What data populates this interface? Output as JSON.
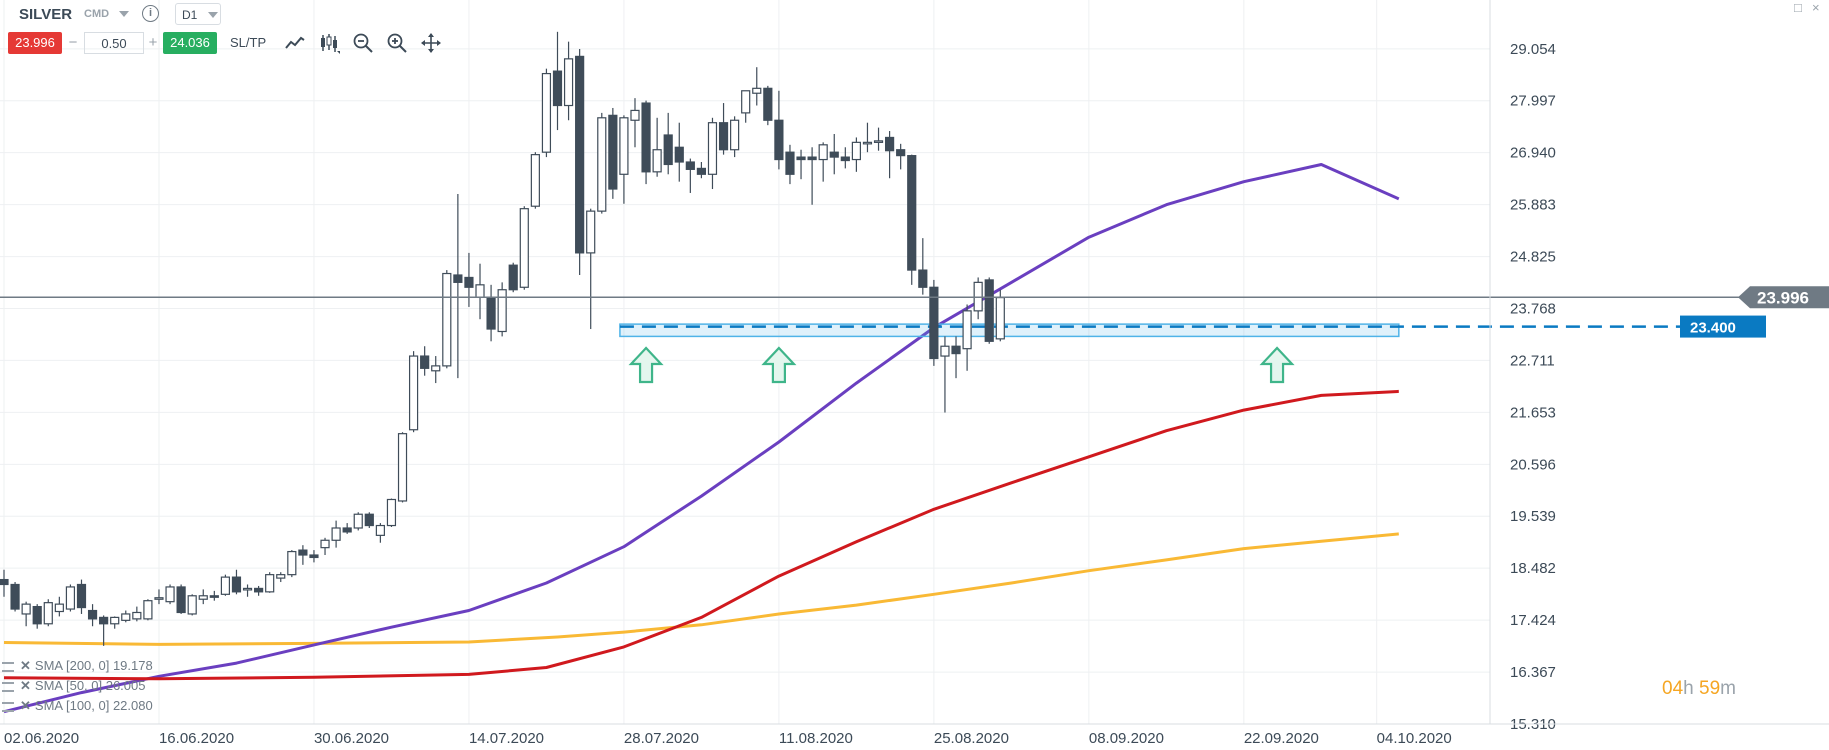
{
  "toolbar": {
    "symbol": "SILVER",
    "market": "CMD",
    "info_icon": "info-icon",
    "timeframe": "D1",
    "sell_price": "23.996",
    "buy_price": "24.036",
    "volume": "0.50",
    "minus_label": "−",
    "plus_label": "+",
    "sltp_label": "SL/TP",
    "tools": [
      "line-chart-icon",
      "candlestick-chart-icon",
      "zoom-out-icon",
      "zoom-in-icon",
      "move-icon"
    ]
  },
  "window_buttons": {
    "minimize": "□",
    "close": "×"
  },
  "legend": [
    {
      "label": "SMA [200, 0] 19.178"
    },
    {
      "label": "SMA [50, 0] 26.005"
    },
    {
      "label": "SMA [100, 0] 22.080"
    }
  ],
  "timer": {
    "hours": "04",
    "h_unit": "h",
    "minutes": "59",
    "m_unit": "m"
  },
  "colors": {
    "bull_body": "#ffffff",
    "bear_body": "#3f4c59",
    "candle_outline": "#3f4c59",
    "sma50": "#6a3fc0",
    "sma100": "#d0191e",
    "sma200": "#f9b935",
    "support_zone": "#4fb3e8",
    "arrow": "#3fb58a",
    "price_tag": "#6f7a84",
    "level_tag": "#0a7ac2"
  },
  "chart_data": {
    "type": "candlestick",
    "title": "SILVER",
    "timeframe": "D1",
    "y_ticks": [
      29.054,
      27.997,
      26.94,
      25.883,
      24.825,
      23.768,
      22.711,
      21.653,
      20.596,
      19.539,
      18.482,
      17.424,
      16.367,
      15.31
    ],
    "y_tick_labels": [
      "29.054",
      "27.997",
      "26.940",
      "25.883",
      "24.825",
      "23.768",
      "22.711",
      "21.653",
      "20.596",
      "19.539",
      "18.482",
      "17.424",
      "16.367",
      "15.310"
    ],
    "x_ticks": [
      {
        "label": "02.06.2020",
        "day": 0
      },
      {
        "label": "16.06.2020",
        "day": 14
      },
      {
        "label": "30.06.2020",
        "day": 28
      },
      {
        "label": "14.07.2020",
        "day": 42
      },
      {
        "label": "28.07.2020",
        "day": 56
      },
      {
        "label": "11.08.2020",
        "day": 70
      },
      {
        "label": "25.08.2020",
        "day": 84
      },
      {
        "label": "08.09.2020",
        "day": 98
      },
      {
        "label": "22.09.2020",
        "day": 112
      },
      {
        "label": "04.10.2020",
        "day": 124
      }
    ],
    "candles": [
      {
        "o": 18.25,
        "h": 18.45,
        "l": 17.9,
        "c": 18.15
      },
      {
        "o": 18.15,
        "h": 18.2,
        "l": 17.6,
        "c": 17.65
      },
      {
        "o": 17.55,
        "h": 17.8,
        "l": 17.3,
        "c": 17.75
      },
      {
        "o": 17.7,
        "h": 17.75,
        "l": 17.25,
        "c": 17.35
      },
      {
        "o": 17.35,
        "h": 17.85,
        "l": 17.3,
        "c": 17.78
      },
      {
        "o": 17.6,
        "h": 17.9,
        "l": 17.5,
        "c": 17.75
      },
      {
        "o": 17.65,
        "h": 18.15,
        "l": 17.6,
        "c": 18.1
      },
      {
        "o": 18.15,
        "h": 18.25,
        "l": 17.55,
        "c": 17.68
      },
      {
        "o": 17.62,
        "h": 17.75,
        "l": 17.3,
        "c": 17.45
      },
      {
        "o": 17.48,
        "h": 17.52,
        "l": 16.9,
        "c": 17.35
      },
      {
        "o": 17.35,
        "h": 17.5,
        "l": 17.25,
        "c": 17.48
      },
      {
        "o": 17.42,
        "h": 17.62,
        "l": 17.38,
        "c": 17.55
      },
      {
        "o": 17.45,
        "h": 17.7,
        "l": 17.4,
        "c": 17.58
      },
      {
        "o": 17.45,
        "h": 17.85,
        "l": 17.42,
        "c": 17.82
      },
      {
        "o": 17.85,
        "h": 18.05,
        "l": 17.75,
        "c": 17.88
      },
      {
        "o": 17.8,
        "h": 18.15,
        "l": 17.75,
        "c": 18.1
      },
      {
        "o": 18.1,
        "h": 18.15,
        "l": 17.55,
        "c": 17.58
      },
      {
        "o": 17.55,
        "h": 17.95,
        "l": 17.52,
        "c": 17.92
      },
      {
        "o": 17.85,
        "h": 18.05,
        "l": 17.75,
        "c": 17.92
      },
      {
        "o": 17.92,
        "h": 18.02,
        "l": 17.82,
        "c": 17.9
      },
      {
        "o": 17.95,
        "h": 18.35,
        "l": 17.92,
        "c": 18.3
      },
      {
        "o": 18.3,
        "h": 18.45,
        "l": 17.95,
        "c": 18.0
      },
      {
        "o": 18.05,
        "h": 18.15,
        "l": 17.9,
        "c": 18.07
      },
      {
        "o": 18.07,
        "h": 18.12,
        "l": 17.92,
        "c": 18.0
      },
      {
        "o": 18.0,
        "h": 18.4,
        "l": 17.98,
        "c": 18.35
      },
      {
        "o": 18.28,
        "h": 18.4,
        "l": 18.2,
        "c": 18.35
      },
      {
        "o": 18.35,
        "h": 18.85,
        "l": 18.3,
        "c": 18.82
      },
      {
        "o": 18.85,
        "h": 18.95,
        "l": 18.55,
        "c": 18.75
      },
      {
        "o": 18.75,
        "h": 18.85,
        "l": 18.6,
        "c": 18.7
      },
      {
        "o": 18.9,
        "h": 19.1,
        "l": 18.75,
        "c": 19.05
      },
      {
        "o": 19.05,
        "h": 19.45,
        "l": 18.9,
        "c": 19.3
      },
      {
        "o": 19.3,
        "h": 19.4,
        "l": 19.18,
        "c": 19.22
      },
      {
        "o": 19.3,
        "h": 19.62,
        "l": 19.25,
        "c": 19.58
      },
      {
        "o": 19.58,
        "h": 19.62,
        "l": 19.3,
        "c": 19.35
      },
      {
        "o": 19.15,
        "h": 19.4,
        "l": 19.0,
        "c": 19.35
      },
      {
        "o": 19.35,
        "h": 19.9,
        "l": 19.32,
        "c": 19.88
      },
      {
        "o": 19.85,
        "h": 21.25,
        "l": 19.82,
        "c": 21.22
      },
      {
        "o": 21.3,
        "h": 22.9,
        "l": 21.25,
        "c": 22.8
      },
      {
        "o": 22.8,
        "h": 23.0,
        "l": 22.4,
        "c": 22.55
      },
      {
        "o": 22.5,
        "h": 22.8,
        "l": 22.25,
        "c": 22.6
      },
      {
        "o": 22.6,
        "h": 24.55,
        "l": 22.55,
        "c": 24.48
      },
      {
        "o": 24.45,
        "h": 26.1,
        "l": 22.35,
        "c": 24.3
      },
      {
        "o": 24.4,
        "h": 24.9,
        "l": 23.8,
        "c": 24.2
      },
      {
        "o": 24.0,
        "h": 24.68,
        "l": 23.55,
        "c": 24.25
      },
      {
        "o": 23.98,
        "h": 24.25,
        "l": 23.1,
        "c": 23.35
      },
      {
        "o": 23.3,
        "h": 24.3,
        "l": 23.2,
        "c": 24.15
      },
      {
        "o": 24.65,
        "h": 24.7,
        "l": 24.1,
        "c": 24.15
      },
      {
        "o": 24.2,
        "h": 25.85,
        "l": 24.15,
        "c": 25.8
      },
      {
        "o": 25.85,
        "h": 26.95,
        "l": 25.8,
        "c": 26.9
      },
      {
        "o": 26.95,
        "h": 28.65,
        "l": 26.85,
        "c": 28.55
      },
      {
        "o": 28.6,
        "h": 29.4,
        "l": 27.4,
        "c": 27.9
      },
      {
        "o": 27.9,
        "h": 29.2,
        "l": 27.6,
        "c": 28.85
      },
      {
        "o": 28.9,
        "h": 29.05,
        "l": 24.45,
        "c": 24.9
      },
      {
        "o": 24.9,
        "h": 25.8,
        "l": 23.35,
        "c": 25.75
      },
      {
        "o": 25.75,
        "h": 27.75,
        "l": 25.7,
        "c": 27.65
      },
      {
        "o": 27.7,
        "h": 27.85,
        "l": 26.0,
        "c": 26.2
      },
      {
        "o": 26.5,
        "h": 27.7,
        "l": 25.9,
        "c": 27.65
      },
      {
        "o": 27.6,
        "h": 28.05,
        "l": 27.05,
        "c": 27.8
      },
      {
        "o": 27.95,
        "h": 28.0,
        "l": 26.3,
        "c": 26.55
      },
      {
        "o": 26.55,
        "h": 27.65,
        "l": 26.45,
        "c": 27.0
      },
      {
        "o": 27.3,
        "h": 27.75,
        "l": 26.5,
        "c": 26.7
      },
      {
        "o": 27.05,
        "h": 27.55,
        "l": 26.35,
        "c": 26.75
      },
      {
        "o": 26.75,
        "h": 26.82,
        "l": 26.12,
        "c": 26.6
      },
      {
        "o": 26.62,
        "h": 26.75,
        "l": 26.42,
        "c": 26.5
      },
      {
        "o": 26.5,
        "h": 27.65,
        "l": 26.2,
        "c": 27.55
      },
      {
        "o": 27.55,
        "h": 27.95,
        "l": 26.9,
        "c": 27.0
      },
      {
        "o": 27.0,
        "h": 27.68,
        "l": 26.85,
        "c": 27.6
      },
      {
        "o": 27.75,
        "h": 28.15,
        "l": 27.55,
        "c": 28.2
      },
      {
        "o": 28.15,
        "h": 28.68,
        "l": 27.9,
        "c": 28.25
      },
      {
        "o": 28.25,
        "h": 28.3,
        "l": 27.5,
        "c": 27.6
      },
      {
        "o": 27.6,
        "h": 28.2,
        "l": 26.6,
        "c": 26.8
      },
      {
        "o": 26.95,
        "h": 27.1,
        "l": 26.3,
        "c": 26.5
      },
      {
        "o": 26.85,
        "h": 27.0,
        "l": 26.4,
        "c": 26.8
      },
      {
        "o": 26.85,
        "h": 27.05,
        "l": 25.88,
        "c": 26.8
      },
      {
        "o": 26.8,
        "h": 27.15,
        "l": 26.35,
        "c": 27.1
      },
      {
        "o": 26.95,
        "h": 27.32,
        "l": 26.5,
        "c": 26.85
      },
      {
        "o": 26.85,
        "h": 27.05,
        "l": 26.62,
        "c": 26.78
      },
      {
        "o": 26.8,
        "h": 27.25,
        "l": 26.55,
        "c": 27.15
      },
      {
        "o": 27.15,
        "h": 27.55,
        "l": 26.95,
        "c": 27.15
      },
      {
        "o": 27.15,
        "h": 27.45,
        "l": 26.98,
        "c": 27.18
      },
      {
        "o": 27.25,
        "h": 27.38,
        "l": 26.42,
        "c": 26.98
      },
      {
        "o": 27.0,
        "h": 27.12,
        "l": 26.6,
        "c": 26.88
      },
      {
        "o": 26.88,
        "h": 26.9,
        "l": 24.25,
        "c": 24.55
      },
      {
        "o": 24.55,
        "h": 25.2,
        "l": 24.05,
        "c": 24.2
      },
      {
        "o": 24.2,
        "h": 24.35,
        "l": 22.6,
        "c": 22.75
      },
      {
        "o": 22.8,
        "h": 23.2,
        "l": 21.65,
        "c": 23.0
      },
      {
        "o": 23.0,
        "h": 23.2,
        "l": 22.35,
        "c": 22.85
      },
      {
        "o": 22.95,
        "h": 23.85,
        "l": 22.5,
        "c": 23.72
      },
      {
        "o": 23.72,
        "h": 24.4,
        "l": 23.55,
        "c": 24.3
      },
      {
        "o": 24.35,
        "h": 24.4,
        "l": 23.05,
        "c": 23.1
      },
      {
        "o": 23.15,
        "h": 24.15,
        "l": 23.1,
        "c": 23.99
      }
    ],
    "sma": [
      {
        "name": "SMA [200, 0]",
        "value": 19.178,
        "color": "#f9b935",
        "points": [
          [
            0,
            16.97
          ],
          [
            14,
            16.93
          ],
          [
            28,
            16.95
          ],
          [
            42,
            16.98
          ],
          [
            50,
            17.08
          ],
          [
            56,
            17.18
          ],
          [
            63,
            17.33
          ],
          [
            70,
            17.55
          ],
          [
            77,
            17.73
          ],
          [
            84,
            17.95
          ],
          [
            91,
            18.18
          ],
          [
            98,
            18.43
          ],
          [
            105,
            18.65
          ],
          [
            112,
            18.88
          ],
          [
            119,
            19.03
          ],
          [
            126,
            19.18
          ]
        ]
      },
      {
        "name": "SMA [50, 0]",
        "value": 26.005,
        "color": "#6a3fc0",
        "points": [
          [
            0,
            15.56
          ],
          [
            7,
            15.95
          ],
          [
            14,
            16.28
          ],
          [
            21,
            16.55
          ],
          [
            28,
            16.92
          ],
          [
            35,
            17.28
          ],
          [
            42,
            17.62
          ],
          [
            49,
            18.18
          ],
          [
            56,
            18.92
          ],
          [
            63,
            19.95
          ],
          [
            70,
            21.05
          ],
          [
            77,
            22.25
          ],
          [
            84,
            23.38
          ],
          [
            91,
            24.3
          ],
          [
            98,
            25.22
          ],
          [
            105,
            25.88
          ],
          [
            112,
            26.35
          ],
          [
            119,
            26.7
          ],
          [
            126,
            26.0
          ]
        ]
      },
      {
        "name": "SMA [100, 0]",
        "value": 22.08,
        "color": "#d0191e",
        "points": [
          [
            0,
            16.25
          ],
          [
            14,
            16.23
          ],
          [
            28,
            16.26
          ],
          [
            42,
            16.32
          ],
          [
            49,
            16.46
          ],
          [
            56,
            16.88
          ],
          [
            63,
            17.48
          ],
          [
            70,
            18.32
          ],
          [
            77,
            19.02
          ],
          [
            84,
            19.68
          ],
          [
            91,
            20.22
          ],
          [
            98,
            20.75
          ],
          [
            105,
            21.28
          ],
          [
            112,
            21.7
          ],
          [
            119,
            22.0
          ],
          [
            126,
            22.08
          ]
        ]
      }
    ],
    "current_price": 23.996,
    "current_price_label": "23.996",
    "support_level": 23.4,
    "support_level_label": "23.400",
    "support_zone": {
      "from": 23.2,
      "to": 23.45,
      "start_day": 56,
      "end_day": 126
    },
    "arrows_at_days": [
      58,
      70,
      115
    ],
    "y_range": [
      15.31,
      29.6
    ]
  }
}
